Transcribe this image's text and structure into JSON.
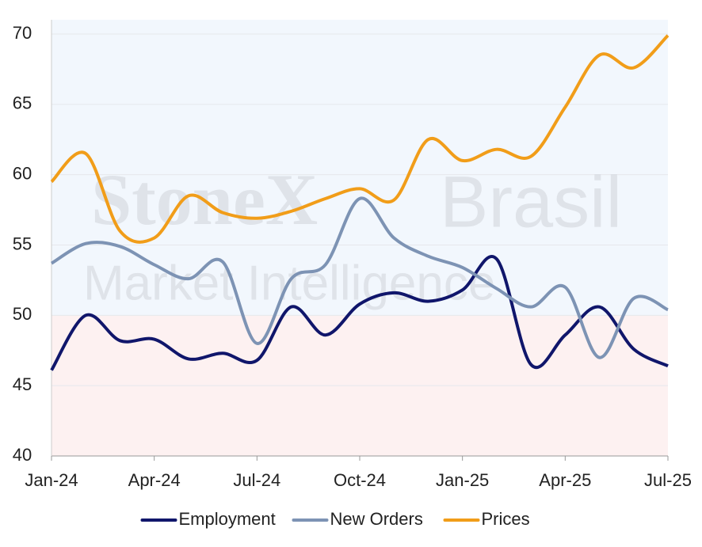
{
  "chart_data": {
    "type": "line",
    "categories": [
      "Jan-24",
      null,
      null,
      "Apr-24",
      null,
      null,
      "Jul-24",
      null,
      null,
      "Oct-24",
      null,
      null,
      "Jan-25",
      null,
      null,
      "Apr-25",
      null,
      null,
      "Jul-25"
    ],
    "series": [
      {
        "name": "Employment",
        "color": "#10166b",
        "values": [
          46.1,
          50.0,
          48.2,
          48.3,
          46.9,
          47.3,
          46.8,
          50.6,
          48.6,
          50.8,
          51.6,
          51.0,
          51.8,
          54.0,
          46.5,
          48.6,
          50.6,
          47.6,
          46.4
        ]
      },
      {
        "name": "New Orders",
        "color": "#7d93b4",
        "values": [
          53.7,
          55.1,
          54.9,
          53.6,
          52.6,
          53.8,
          48.0,
          52.6,
          53.6,
          58.3,
          55.5,
          54.2,
          53.4,
          51.9,
          50.6,
          52.0,
          47.0,
          51.2,
          50.4
        ]
      },
      {
        "name": "Prices",
        "color": "#f19d19",
        "values": [
          59.5,
          61.5,
          56.0,
          55.5,
          58.5,
          57.3,
          56.9,
          57.4,
          58.3,
          59.0,
          58.2,
          62.5,
          61.0,
          61.8,
          61.3,
          64.8,
          68.5,
          67.6,
          69.9
        ]
      }
    ],
    "ylim": [
      40,
      70
    ],
    "yticks": [
      40,
      45,
      50,
      55,
      60,
      65,
      70
    ],
    "grid": true,
    "threshold": 50,
    "above_color": "#f2f7fd",
    "below_color": "#fdf1f1",
    "watermark": [
      "StoneX",
      "Brasil",
      "Market Intelligence"
    ],
    "legend": "bottom"
  }
}
